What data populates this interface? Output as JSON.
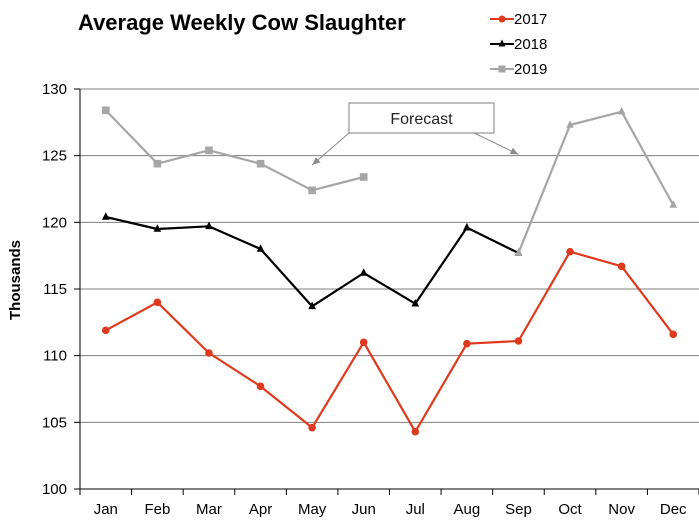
{
  "chart_data": {
    "type": "line",
    "title": "Average Weekly Cow Slaughter",
    "ylabel": "Thousands",
    "xlabel": "",
    "categories": [
      "Jan",
      "Feb",
      "Mar",
      "Apr",
      "May",
      "Jun",
      "Jul",
      "Aug",
      "Sep",
      "Oct",
      "Nov",
      "Dec"
    ],
    "ylim": [
      100,
      130
    ],
    "yticks": [
      100,
      105,
      110,
      115,
      120,
      125,
      130
    ],
    "grid": true,
    "legend_position": "top-right",
    "series": [
      {
        "name": "2017",
        "color": "#e03a1e",
        "marker": "circle",
        "values": [
          111.9,
          114.0,
          110.2,
          107.7,
          104.6,
          111.0,
          104.3,
          110.9,
          111.1,
          117.8,
          116.7,
          111.6
        ]
      },
      {
        "name": "2018",
        "color": "#000000",
        "marker": "triangle",
        "values": [
          120.4,
          119.5,
          119.7,
          118.0,
          113.7,
          116.2,
          113.9,
          119.6,
          117.7,
          null,
          null,
          null
        ]
      },
      {
        "name": "2019",
        "color": "#a6a6a6",
        "marker": "square",
        "values": [
          128.4,
          124.4,
          125.4,
          124.4,
          122.4,
          123.4,
          null,
          null,
          null,
          null,
          null,
          null
        ]
      },
      {
        "name": "2018",
        "color": "#a6a6a6",
        "marker": "triangle",
        "values": [
          null,
          null,
          null,
          null,
          null,
          null,
          null,
          null,
          117.7,
          127.3,
          128.3,
          121.3
        ]
      }
    ],
    "annotations": [
      {
        "text": "Forecast",
        "arrow_targets": [
          {
            "x": "May",
            "y": 124.3
          },
          {
            "x": "Sep",
            "y": 125.1
          }
        ]
      }
    ]
  }
}
